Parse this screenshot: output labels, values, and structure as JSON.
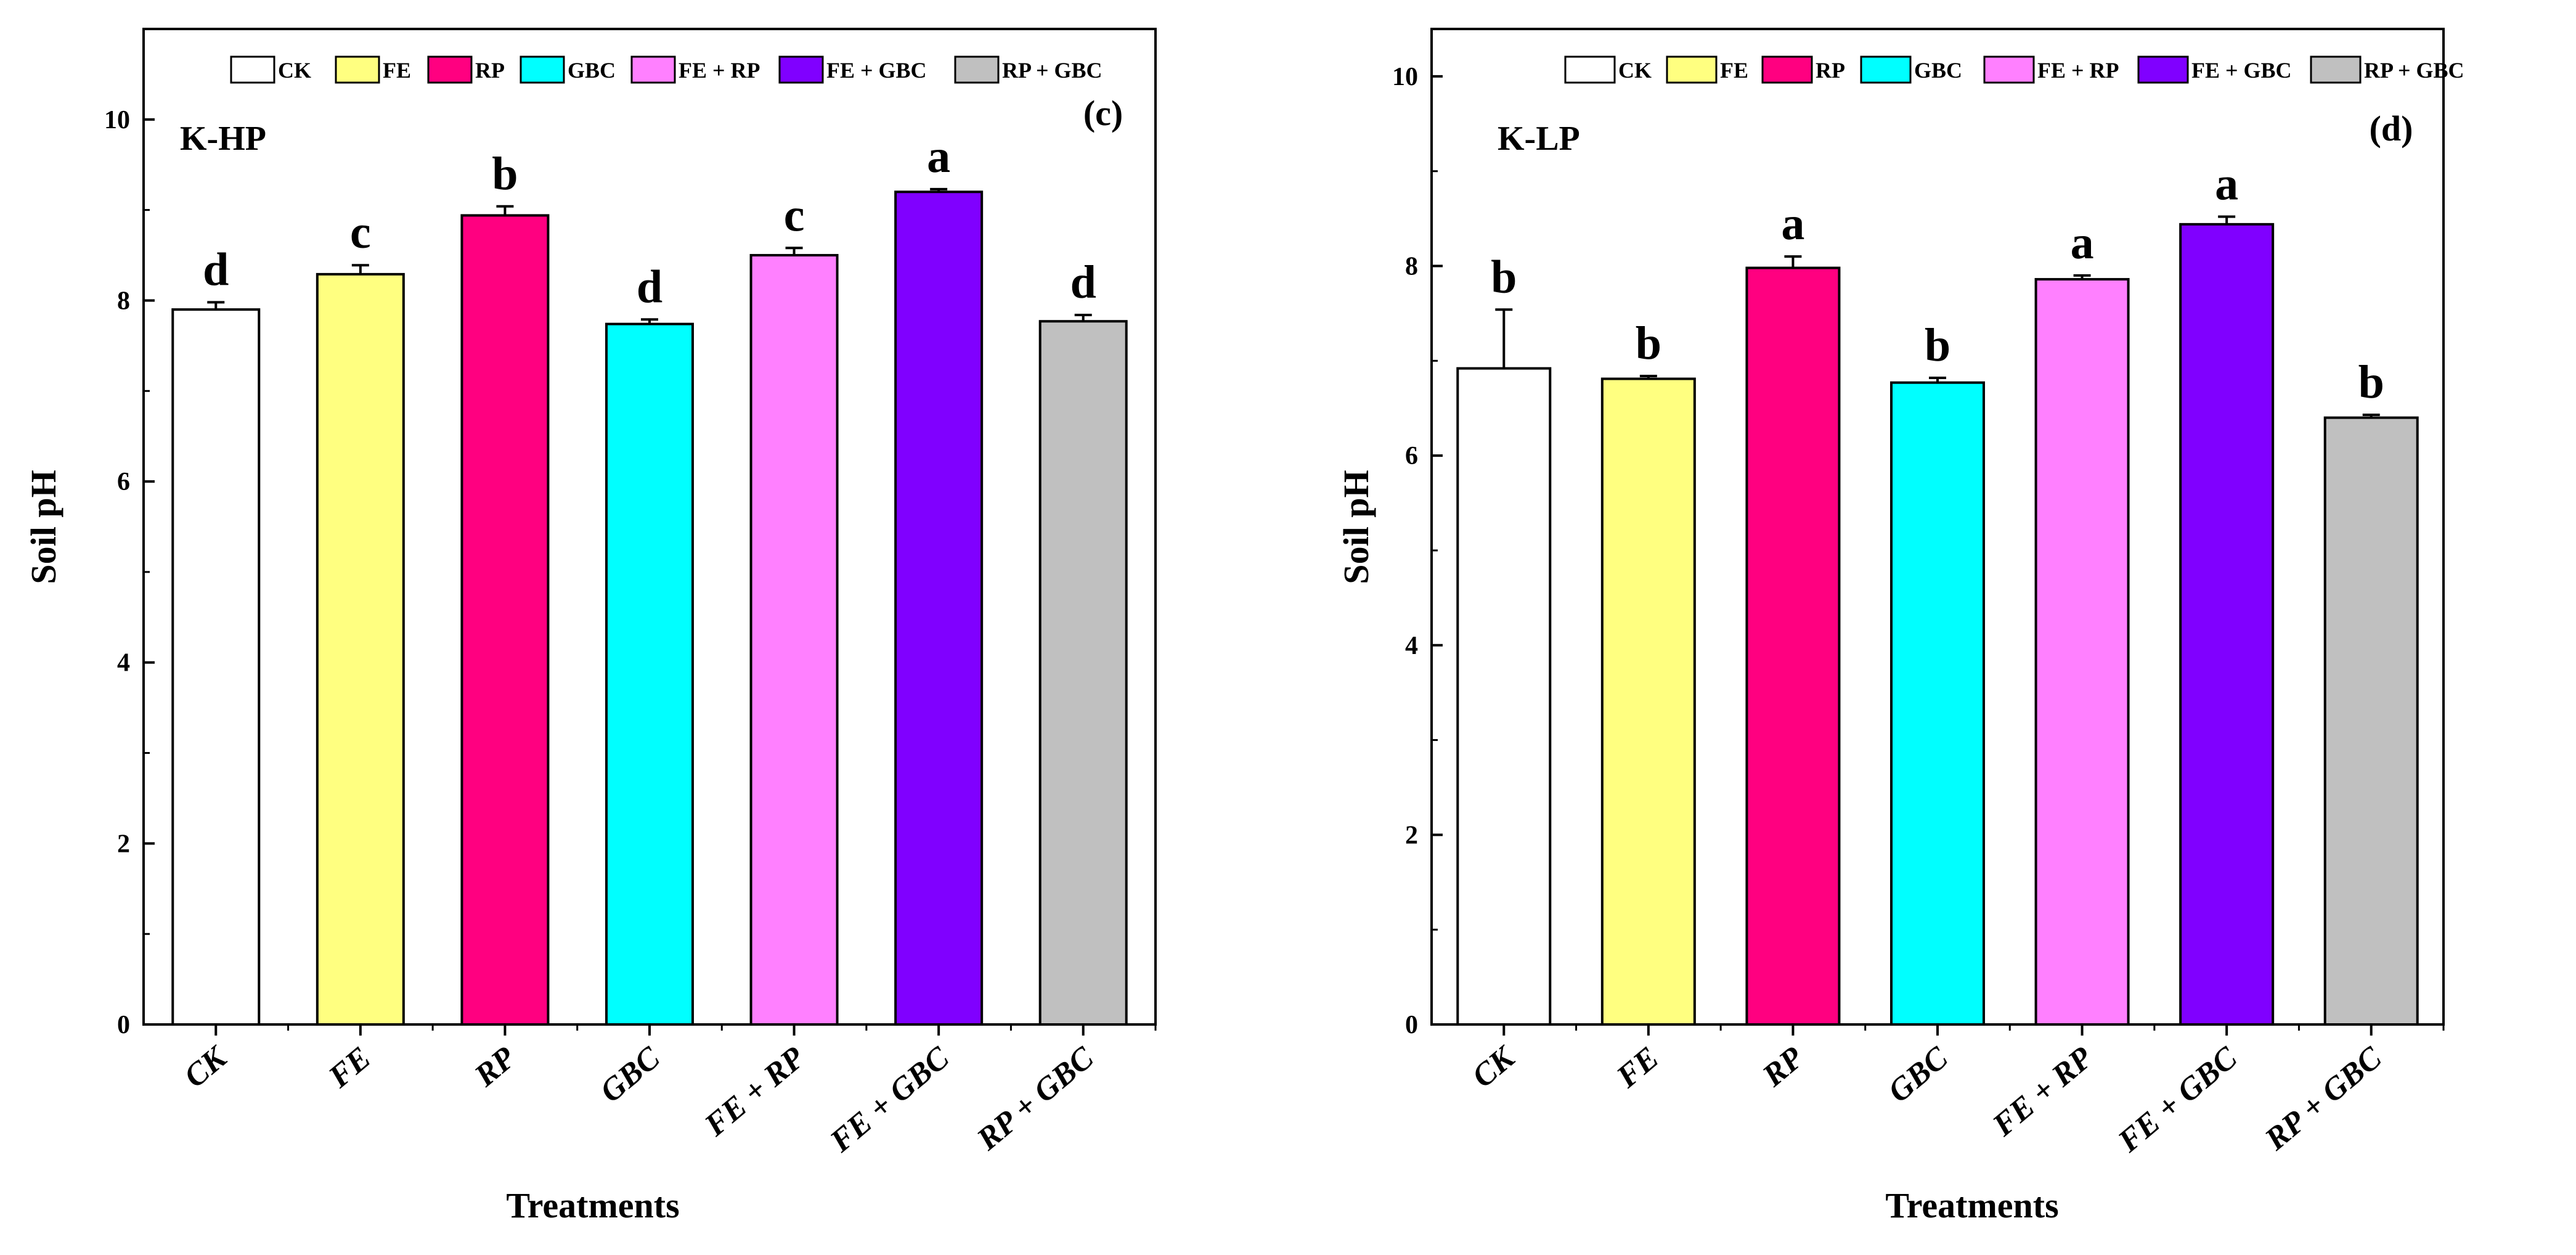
{
  "chart_data": [
    {
      "type": "bar",
      "panel_label": "(c)",
      "site": "K-HP",
      "xlabel": "Treatments",
      "ylabel": "Soil pH",
      "ylim": [
        0,
        11
      ],
      "yticks": [
        "0",
        "2",
        "4",
        "6",
        "8",
        "10"
      ],
      "categories": [
        "CK",
        "FE",
        "RP",
        "GBC",
        "FE + RP",
        "FE + GBC",
        "RP + GBC"
      ],
      "values": [
        7.9,
        8.29,
        8.94,
        7.74,
        8.5,
        9.2,
        7.77
      ],
      "errors": [
        0.08,
        0.1,
        0.1,
        0.05,
        0.08,
        0.03,
        0.07
      ],
      "letters": [
        "d",
        "c",
        "b",
        "d",
        "c",
        "a",
        "d"
      ],
      "legend": [
        "CK",
        "FE",
        "RP",
        "GBC",
        "FE + RP",
        "FE + GBC",
        "RP + GBC"
      ]
    },
    {
      "type": "bar",
      "panel_label": "(d)",
      "site": "K-LP",
      "xlabel": "Treatments",
      "ylabel": "Soil pH",
      "ylim": [
        0,
        10.5
      ],
      "yticks": [
        "0",
        "2",
        "4",
        "6",
        "8",
        "10"
      ],
      "categories": [
        "CK",
        "FE",
        "RP",
        "GBC",
        "FE + RP",
        "FE + GBC",
        "RP + GBC"
      ],
      "values": [
        6.92,
        6.81,
        7.98,
        6.77,
        7.86,
        8.44,
        6.4
      ],
      "errors": [
        0.62,
        0.03,
        0.12,
        0.05,
        0.04,
        0.08,
        0.03
      ],
      "letters": [
        "b",
        "b",
        "a",
        "b",
        "a",
        "a",
        "b"
      ],
      "legend": [
        "CK",
        "FE",
        "RP",
        "GBC",
        "FE + RP",
        "FE + GBC",
        "RP + GBC"
      ]
    }
  ],
  "colors": [
    "#ffffff",
    "#ffff80",
    "#ff0080",
    "#00ffff",
    "#ff80ff",
    "#8000ff",
    "#c0c0c0"
  ]
}
